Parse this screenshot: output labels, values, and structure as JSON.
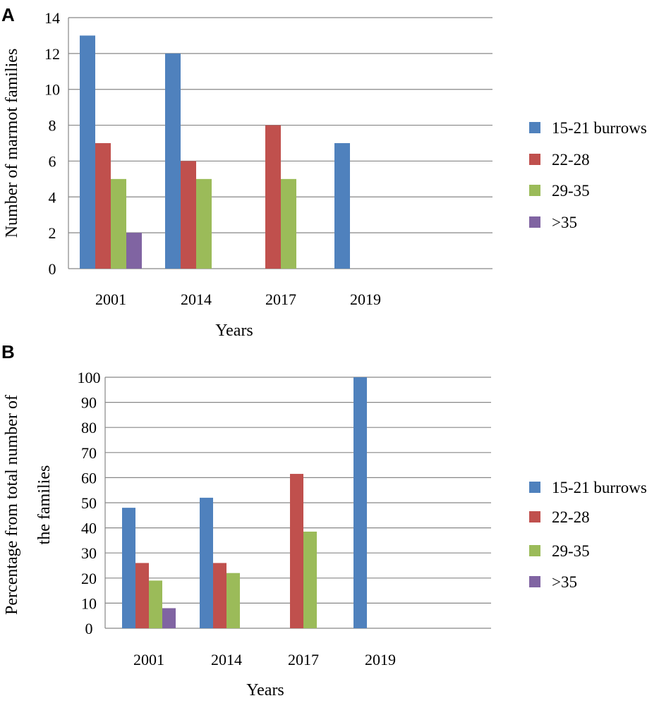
{
  "chart_data": [
    {
      "panel": "A",
      "type": "bar",
      "categories": [
        "2001",
        "2014",
        "2017",
        "2019"
      ],
      "series": [
        {
          "name": "15-21 burrows",
          "values": [
            13,
            12,
            0,
            7
          ]
        },
        {
          "name": "22-28",
          "values": [
            7,
            6,
            8,
            0
          ]
        },
        {
          "name": "29-35",
          "values": [
            5,
            5,
            5,
            0
          ]
        },
        {
          "name": ">35",
          "values": [
            2,
            0,
            0,
            0
          ]
        }
      ],
      "yticks": [
        0,
        2,
        4,
        6,
        8,
        10,
        12,
        14
      ],
      "ylim": [
        0,
        14
      ],
      "xlabel": "Years",
      "ylabel": "Number of marmot families",
      "grid": true,
      "legend": "right"
    },
    {
      "panel": "B",
      "type": "bar",
      "categories": [
        "2001",
        "2014",
        "2017",
        "2019"
      ],
      "series": [
        {
          "name": "15-21 burrows",
          "values": [
            48,
            52,
            0,
            100
          ]
        },
        {
          "name": "22-28",
          "values": [
            26,
            26,
            61.5,
            0
          ]
        },
        {
          "name": "29-35",
          "values": [
            19,
            22,
            38.5,
            0
          ]
        },
        {
          "name": ">35",
          "values": [
            8,
            0,
            0,
            0
          ]
        }
      ],
      "yticks": [
        0,
        10,
        20,
        30,
        40,
        50,
        60,
        70,
        80,
        90,
        100
      ],
      "ylim": [
        0,
        100
      ],
      "xlabel": "Years",
      "ylabel_lines": [
        "Percentage from total number of",
        "the families"
      ],
      "grid": true,
      "legend": "right"
    }
  ],
  "colors": {
    "15-21 burrows": "#4F81BD",
    "22-28": "#C0504D",
    "29-35": "#9BBB59",
    ">35": "#8064A2"
  }
}
